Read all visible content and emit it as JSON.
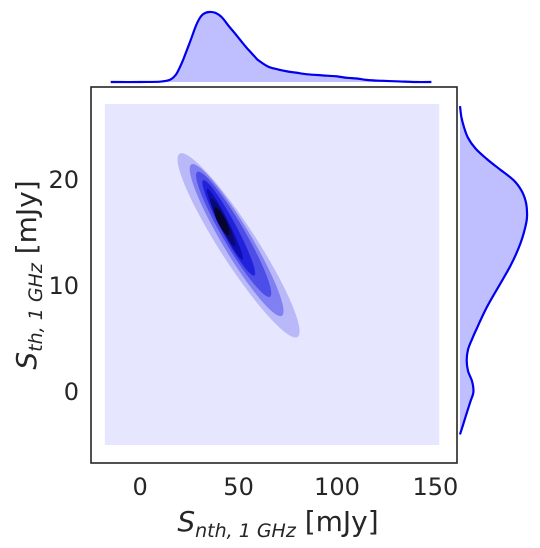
{
  "chart_data": {
    "type": "kde-jointplot",
    "xlabel_main": "S",
    "xlabel_sub": "nth, 1 GHz",
    "xlabel_unit": " [mJy]",
    "ylabel_main": "S",
    "ylabel_sub": "th, 1 GHz",
    "ylabel_unit": " [mJy]",
    "xlim": [
      -25,
      161
    ],
    "ylim": [
      -6.7,
      28.8
    ],
    "xticks": [
      0,
      50,
      100,
      150
    ],
    "yticks": [
      0,
      10,
      20
    ],
    "xtick_labels": [
      "0",
      "50",
      "100",
      "150"
    ],
    "ytick_labels": [
      "0",
      "10",
      "20"
    ],
    "grid": false,
    "kde_2d": {
      "center": [
        42,
        16
      ],
      "background_rect": {
        "x": [
          -18,
          152
        ],
        "y": [
          -5,
          27.2
        ]
      },
      "levels": [
        {
          "shade": "#b9b9f9",
          "x_range": [
            20,
            80
          ],
          "y_range": [
            5.2,
            22.5
          ]
        },
        {
          "shade": "#8080f2",
          "x_range": [
            26,
            72
          ],
          "y_range": [
            7.2,
            21.5
          ]
        },
        {
          "shade": "#4d4de8",
          "x_range": [
            29,
            66
          ],
          "y_range": [
            9.0,
            20.8
          ]
        },
        {
          "shade": "#2222dd",
          "x_range": [
            32,
            58
          ],
          "y_range": [
            11.0,
            20.0
          ]
        },
        {
          "shade": "#0d0db0",
          "x_range": [
            34,
            52
          ],
          "y_range": [
            12.5,
            19.2
          ]
        },
        {
          "shade": "#0a0a70",
          "x_range": [
            36,
            48
          ],
          "y_range": [
            13.8,
            18.3
          ]
        },
        {
          "shade": "#050530",
          "x_range": [
            38,
            45
          ],
          "y_range": [
            14.8,
            17.4
          ]
        }
      ]
    },
    "marginal_x": {
      "x": [
        -15,
        0,
        10,
        15,
        18,
        20,
        22,
        25,
        28,
        30,
        32,
        35,
        38,
        40,
        42,
        45,
        48,
        50,
        52,
        55,
        58,
        60,
        65,
        70,
        75,
        80,
        85,
        90,
        95,
        100,
        105,
        110,
        115,
        120,
        130,
        140,
        148
      ],
      "density": [
        0.0,
        0.0,
        0.005,
        0.03,
        0.1,
        0.2,
        0.33,
        0.55,
        0.78,
        0.9,
        0.97,
        1.0,
        0.99,
        0.96,
        0.91,
        0.8,
        0.7,
        0.63,
        0.56,
        0.46,
        0.37,
        0.31,
        0.22,
        0.18,
        0.15,
        0.13,
        0.11,
        0.1,
        0.09,
        0.08,
        0.06,
        0.05,
        0.03,
        0.02,
        0.01,
        0.0,
        0.0
      ]
    },
    "marginal_y": {
      "y": [
        -4,
        -3,
        -1,
        0,
        1,
        2,
        3,
        4,
        5,
        6,
        8,
        10,
        12,
        14,
        16,
        17,
        18,
        19,
        20,
        21,
        22,
        23,
        24,
        25,
        26,
        27
      ],
      "density": [
        0.0,
        0.05,
        0.15,
        0.2,
        0.18,
        0.12,
        0.1,
        0.12,
        0.18,
        0.25,
        0.4,
        0.58,
        0.76,
        0.9,
        0.99,
        1.0,
        0.98,
        0.92,
        0.8,
        0.6,
        0.4,
        0.23,
        0.12,
        0.06,
        0.02,
        0.0
      ]
    },
    "fill_color": "#bfbfff",
    "line_color": "#0000ee",
    "background_color": "#e6e6ff"
  }
}
